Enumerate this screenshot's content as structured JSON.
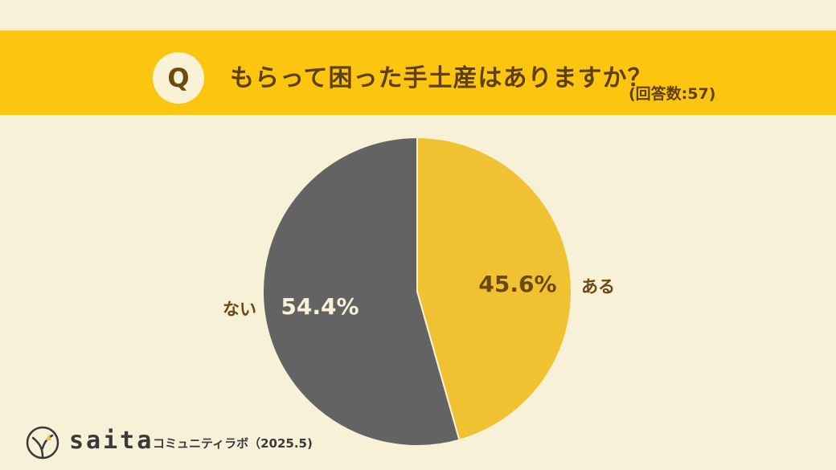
{
  "header": {
    "badge": "Q",
    "question": "もらって困った手土産はありますか？",
    "count": "(回答数:57)"
  },
  "colors": {
    "background": "#f7f1d8",
    "banner": "#fcc510",
    "yes": "#f0c232",
    "no": "#636363",
    "label_text": "#6b4810"
  },
  "chart_data": {
    "type": "pie",
    "slices": [
      {
        "label": "ある",
        "value": 45.6,
        "value_label": "45.6%",
        "color": "#f0c232"
      },
      {
        "label": "ない",
        "value": 54.4,
        "value_label": "54.4%",
        "color": "#636363"
      }
    ],
    "start_angle": "12 o'clock",
    "direction": "clockwise"
  },
  "footer": {
    "brand": "saita",
    "subtitle": "コミュニティラボ（2025.5)"
  }
}
